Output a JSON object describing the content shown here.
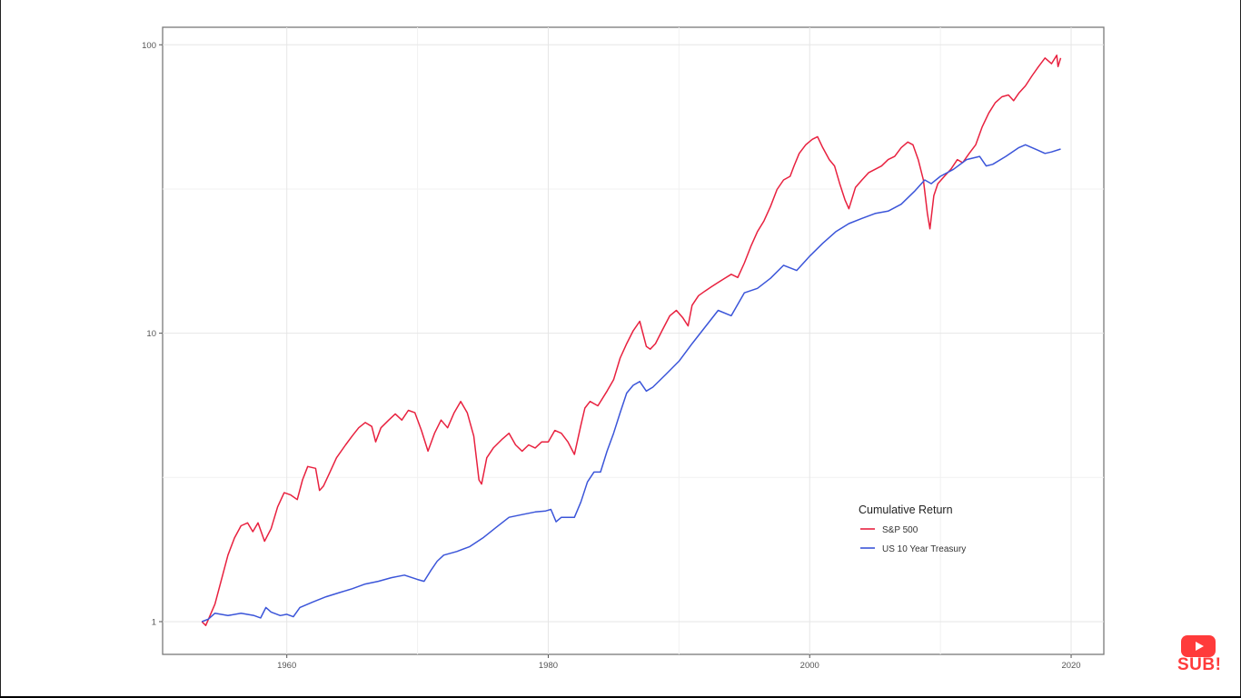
{
  "chart_data": {
    "type": "line",
    "title": "",
    "xlabel": "",
    "ylabel": "",
    "y_scale": "log10",
    "xlim": [
      1950.5,
      2022.5
    ],
    "ylim": [
      0.77,
      115
    ],
    "x_ticks": [
      1960,
      1980,
      2000,
      2020
    ],
    "x_tick_labels": [
      "1960",
      "1980",
      "2000",
      "2020"
    ],
    "y_ticks": [
      1,
      10,
      100
    ],
    "y_tick_labels": [
      "1",
      "10",
      "100"
    ],
    "grid": true,
    "legend": {
      "title": "Cumulative Return",
      "placement": "bottom-right inside plot"
    },
    "series": [
      {
        "name": "S&P 500",
        "color": "#e8213f",
        "x": [
          1953.5,
          1953.8,
          1954.5,
          1955.0,
          1955.5,
          1956.0,
          1956.5,
          1957.0,
          1957.4,
          1957.8,
          1958.3,
          1958.8,
          1959.3,
          1959.8,
          1960.3,
          1960.8,
          1961.2,
          1961.6,
          1962.2,
          1962.5,
          1962.8,
          1963.3,
          1963.8,
          1964.5,
          1965.0,
          1965.5,
          1966.0,
          1966.5,
          1966.8,
          1967.2,
          1967.8,
          1968.3,
          1968.8,
          1969.3,
          1969.8,
          1970.3,
          1970.8,
          1971.3,
          1971.8,
          1972.3,
          1972.8,
          1973.3,
          1973.8,
          1974.3,
          1974.7,
          1974.9,
          1975.3,
          1975.8,
          1976.5,
          1977.0,
          1977.5,
          1978.0,
          1978.5,
          1979.0,
          1979.5,
          1980.0,
          1980.5,
          1981.0,
          1981.5,
          1982.0,
          1982.5,
          1982.8,
          1983.2,
          1983.8,
          1984.5,
          1985.0,
          1985.5,
          1986.0,
          1986.5,
          1987.0,
          1987.5,
          1987.8,
          1988.2,
          1988.7,
          1989.3,
          1989.8,
          1990.3,
          1990.7,
          1991.0,
          1991.5,
          1992.0,
          1992.5,
          1993.0,
          1993.5,
          1994.0,
          1994.5,
          1995.0,
          1995.5,
          1996.0,
          1996.5,
          1997.0,
          1997.5,
          1998.0,
          1998.5,
          1998.8,
          1999.2,
          1999.7,
          2000.2,
          2000.6,
          2001.0,
          2001.5,
          2001.9,
          2002.3,
          2002.7,
          2003.0,
          2003.5,
          2004.0,
          2004.5,
          2005.0,
          2005.5,
          2006.0,
          2006.5,
          2007.0,
          2007.5,
          2007.9,
          2008.3,
          2008.7,
          2009.0,
          2009.2,
          2009.5,
          2009.8,
          2010.3,
          2010.8,
          2011.3,
          2011.7,
          2012.2,
          2012.7,
          2013.2,
          2013.7,
          2014.2,
          2014.7,
          2015.2,
          2015.6,
          2016.0,
          2016.5,
          2017.0,
          2017.5,
          2018.0,
          2018.5,
          2018.9,
          2019.0,
          2019.2
        ],
        "values": [
          1.0,
          0.97,
          1.15,
          1.4,
          1.7,
          1.95,
          2.15,
          2.2,
          2.05,
          2.2,
          1.9,
          2.1,
          2.5,
          2.8,
          2.75,
          2.65,
          3.1,
          3.45,
          3.4,
          2.85,
          2.95,
          3.3,
          3.7,
          4.1,
          4.4,
          4.7,
          4.9,
          4.75,
          4.2,
          4.7,
          5.0,
          5.25,
          5.0,
          5.4,
          5.3,
          4.6,
          3.9,
          4.5,
          5.0,
          4.7,
          5.3,
          5.8,
          5.3,
          4.4,
          3.1,
          3.0,
          3.7,
          4.0,
          4.3,
          4.5,
          4.1,
          3.9,
          4.1,
          4.0,
          4.2,
          4.2,
          4.6,
          4.5,
          4.2,
          3.8,
          4.8,
          5.5,
          5.8,
          5.6,
          6.3,
          6.9,
          8.2,
          9.2,
          10.2,
          11.0,
          9.0,
          8.8,
          9.2,
          10.2,
          11.5,
          12.0,
          11.3,
          10.6,
          12.5,
          13.5,
          14.0,
          14.5,
          15.0,
          15.5,
          16.0,
          15.6,
          17.5,
          20.0,
          22.5,
          24.5,
          27.5,
          31.5,
          34.0,
          35.0,
          38.0,
          42.0,
          45.0,
          47.0,
          48.0,
          44.0,
          40.0,
          38.0,
          33.0,
          29.0,
          27.0,
          32.0,
          34.0,
          36.0,
          37.0,
          38.0,
          40.0,
          41.0,
          44.0,
          46.0,
          45.0,
          40.0,
          34.0,
          26.0,
          23.0,
          30.0,
          33.0,
          35.0,
          37.0,
          40.0,
          39.0,
          42.0,
          45.0,
          52.0,
          58.0,
          63.0,
          66.0,
          67.0,
          64.0,
          68.0,
          72.0,
          78.0,
          84.0,
          90.0,
          86.0,
          92.0,
          84.0,
          90.0
        ]
      },
      {
        "name": "US 10 Year Treasury",
        "color": "#3b55d9",
        "x": [
          1953.5,
          1954.0,
          1954.5,
          1955.5,
          1956.5,
          1957.5,
          1958.0,
          1958.4,
          1958.8,
          1959.5,
          1960.0,
          1960.5,
          1961.0,
          1962.0,
          1963.0,
          1964.0,
          1965.0,
          1966.0,
          1967.0,
          1968.0,
          1969.0,
          1970.0,
          1970.5,
          1971.0,
          1971.5,
          1972.0,
          1973.0,
          1974.0,
          1975.0,
          1976.0,
          1977.0,
          1978.0,
          1979.0,
          1979.8,
          1980.2,
          1980.6,
          1981.0,
          1981.5,
          1982.0,
          1982.5,
          1983.0,
          1983.5,
          1984.0,
          1984.5,
          1985.0,
          1985.5,
          1986.0,
          1986.5,
          1987.0,
          1987.5,
          1988.0,
          1989.0,
          1990.0,
          1991.0,
          1992.0,
          1993.0,
          1994.0,
          1995.0,
          1996.0,
          1997.0,
          1998.0,
          1999.0,
          2000.0,
          2001.0,
          2002.0,
          2003.0,
          2004.0,
          2005.0,
          2006.0,
          2007.0,
          2008.0,
          2008.8,
          2009.3,
          2010.0,
          2011.0,
          2012.0,
          2013.0,
          2013.5,
          2014.0,
          2015.0,
          2016.0,
          2016.5,
          2017.0,
          2017.5,
          2018.0,
          2018.5,
          2019.2
        ],
        "values": [
          1.0,
          1.02,
          1.07,
          1.05,
          1.07,
          1.05,
          1.03,
          1.12,
          1.08,
          1.05,
          1.06,
          1.04,
          1.12,
          1.17,
          1.22,
          1.26,
          1.3,
          1.35,
          1.38,
          1.42,
          1.45,
          1.4,
          1.38,
          1.5,
          1.62,
          1.7,
          1.75,
          1.82,
          1.95,
          2.12,
          2.3,
          2.35,
          2.4,
          2.42,
          2.45,
          2.22,
          2.3,
          2.3,
          2.3,
          2.6,
          3.05,
          3.3,
          3.3,
          3.9,
          4.5,
          5.3,
          6.2,
          6.6,
          6.8,
          6.3,
          6.5,
          7.2,
          8.0,
          9.2,
          10.5,
          12.0,
          11.5,
          13.8,
          14.3,
          15.5,
          17.2,
          16.5,
          18.5,
          20.5,
          22.5,
          24.0,
          25.0,
          26.0,
          26.5,
          28.0,
          31.0,
          34.0,
          33.0,
          35.0,
          37.0,
          40.0,
          41.0,
          38.0,
          38.5,
          41.0,
          44.0,
          45.0,
          44.0,
          43.0,
          42.0,
          42.5,
          43.5
        ]
      }
    ]
  },
  "watermark": {
    "label": "SUB!"
  }
}
